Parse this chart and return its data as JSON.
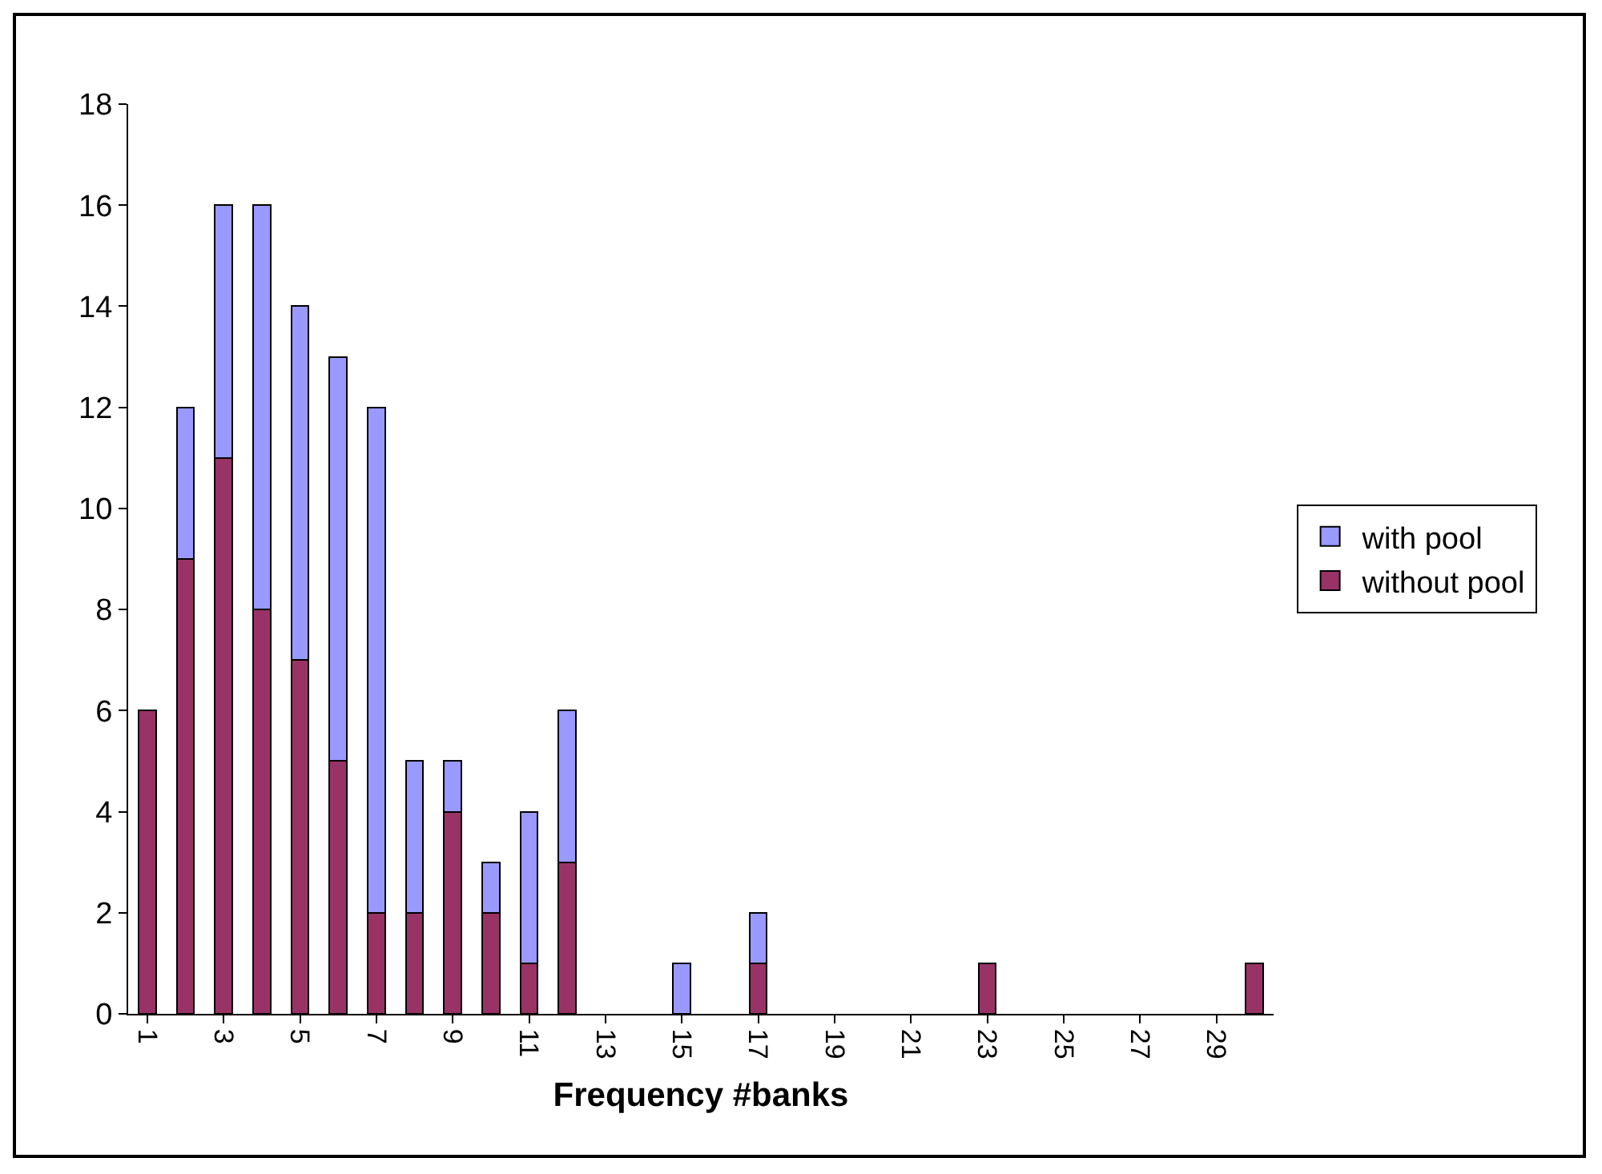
{
  "chart_data": {
    "type": "bar",
    "stacked": true,
    "xlabel": "Frequency #banks",
    "categories": [
      "1",
      null,
      "3",
      null,
      "5",
      null,
      "7",
      null,
      "9",
      null,
      "11",
      null,
      "13",
      null,
      "15",
      null,
      "17",
      null,
      "19",
      null,
      "21",
      null,
      "23",
      null,
      "25",
      null,
      "27",
      null,
      "29",
      null
    ],
    "series": [
      {
        "name": "without pool",
        "color": "#993366",
        "values": [
          6,
          9,
          11,
          8,
          7,
          5,
          2,
          2,
          4,
          2,
          1,
          3,
          null,
          null,
          null,
          null,
          1,
          null,
          null,
          null,
          null,
          null,
          1,
          null,
          null,
          null,
          null,
          null,
          null,
          1
        ]
      },
      {
        "name": "with pool",
        "color": "#9999ff",
        "values": [
          null,
          3,
          5,
          8,
          7,
          8,
          10,
          3,
          1,
          1,
          3,
          3,
          null,
          null,
          1,
          null,
          1,
          null,
          null,
          null,
          null,
          null,
          null,
          null,
          null,
          null,
          null,
          null,
          null,
          null
        ]
      }
    ],
    "ylim": [
      0,
      18
    ],
    "yticks": [
      0,
      2,
      4,
      6,
      8,
      10,
      12,
      14,
      16,
      18
    ],
    "grid": false,
    "legend": "right"
  }
}
